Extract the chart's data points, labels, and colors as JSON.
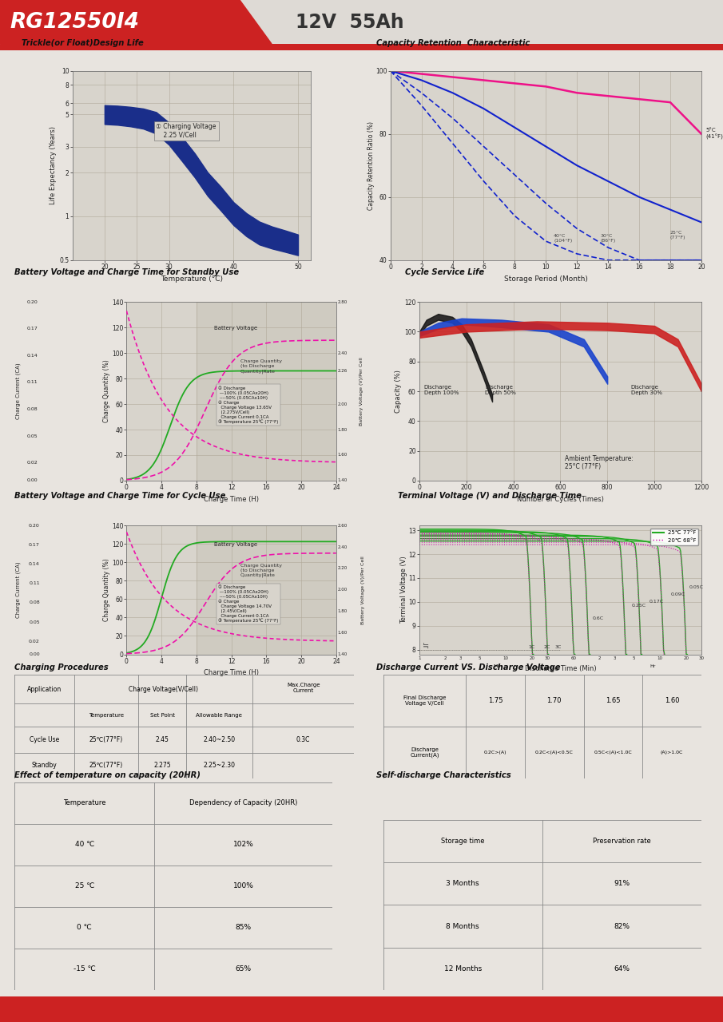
{
  "title": "RG12550I4",
  "spec": "12V  55Ah",
  "red": "#cc2222",
  "dark_red": "#aa1111",
  "bg": "#e8e4df",
  "plot_bg": "#d8d4cc",
  "grid_c": "#b0a898",
  "blue_dark": "#1a2e8a",
  "pink": "#ee1188",
  "green_dark": "#116611",
  "green": "#22aa22",
  "magenta": "#cc11aa",
  "cap_retention": {
    "months": [
      0,
      2,
      4,
      6,
      8,
      10,
      12,
      14,
      16,
      18,
      20
    ],
    "c5": [
      100,
      99,
      98,
      97,
      96,
      95,
      93,
      92,
      91,
      90,
      80
    ],
    "c25": [
      100,
      97,
      93,
      88,
      82,
      76,
      70,
      65,
      60,
      56,
      52
    ],
    "c30_dashed": [
      100,
      93,
      85,
      76,
      67,
      58,
      50,
      44,
      40,
      40,
      40
    ],
    "c40_dashed": [
      100,
      89,
      77,
      65,
      54,
      46,
      42,
      40,
      40,
      40,
      40
    ]
  },
  "trickle_temp": [
    20,
    22,
    24,
    26,
    28,
    30,
    32,
    34,
    36,
    38,
    40,
    42,
    44,
    46,
    48,
    50
  ],
  "trickle_upper": [
    5.8,
    5.75,
    5.65,
    5.5,
    5.2,
    4.4,
    3.5,
    2.7,
    2.0,
    1.6,
    1.25,
    1.05,
    0.92,
    0.85,
    0.8,
    0.75
  ],
  "trickle_lower": [
    4.3,
    4.25,
    4.15,
    4.0,
    3.7,
    3.1,
    2.4,
    1.85,
    1.38,
    1.1,
    0.87,
    0.73,
    0.64,
    0.6,
    0.57,
    0.54
  ],
  "cycle_life": {
    "d100_x": [
      0,
      30,
      80,
      140,
      180,
      220,
      270,
      310
    ],
    "d100_hi": [
      100,
      108,
      112,
      110,
      105,
      95,
      75,
      58
    ],
    "d100_lo": [
      98,
      104,
      108,
      106,
      100,
      90,
      70,
      53
    ],
    "d50_x": [
      0,
      80,
      180,
      350,
      550,
      700,
      800
    ],
    "d50_hi": [
      100,
      106,
      109,
      108,
      105,
      95,
      70
    ],
    "d50_lo": [
      97,
      102,
      105,
      103,
      100,
      90,
      65
    ],
    "d30_x": [
      0,
      200,
      500,
      800,
      1000,
      1100,
      1200
    ],
    "d30_hi": [
      100,
      105,
      107,
      106,
      104,
      95,
      65
    ],
    "d30_lo": [
      96,
      100,
      102,
      101,
      99,
      90,
      60
    ]
  },
  "terminal": {
    "legend_25": "25℃ 77°F",
    "legend_20": "20℃ 68°F",
    "ylim": [
      7.8,
      13.2
    ],
    "yticks": [
      8,
      9,
      10,
      11,
      12,
      13
    ]
  },
  "charging_table": {
    "app": [
      "Cycle Use",
      "Standby"
    ],
    "temp": [
      "25℃(77°F)",
      "25℃(77°F)"
    ],
    "set_point": [
      "2.45",
      "2.275"
    ],
    "allow_range": [
      "2.40~2.50",
      "2.25~2.30"
    ],
    "max_charge": "0.3C"
  },
  "discharge_cv_table": {
    "final_v": [
      "1.75",
      "1.70",
      "1.65",
      "1.60"
    ],
    "discharge_i": [
      "0.2C>(A)",
      "0.2C<(A)<0.5C",
      "0.5C<(A)<1.0C",
      "(A)>1.0C"
    ]
  },
  "temp_cap_table": {
    "temps": [
      "40 ℃",
      "25 ℃",
      "0 ℃",
      "-15 ℃"
    ],
    "deps": [
      "102%",
      "100%",
      "85%",
      "65%"
    ]
  },
  "self_discharge_table": {
    "months": [
      "3 Months",
      "8 Months",
      "12 Months"
    ],
    "rates": [
      "91%",
      "82%",
      "64%"
    ]
  }
}
